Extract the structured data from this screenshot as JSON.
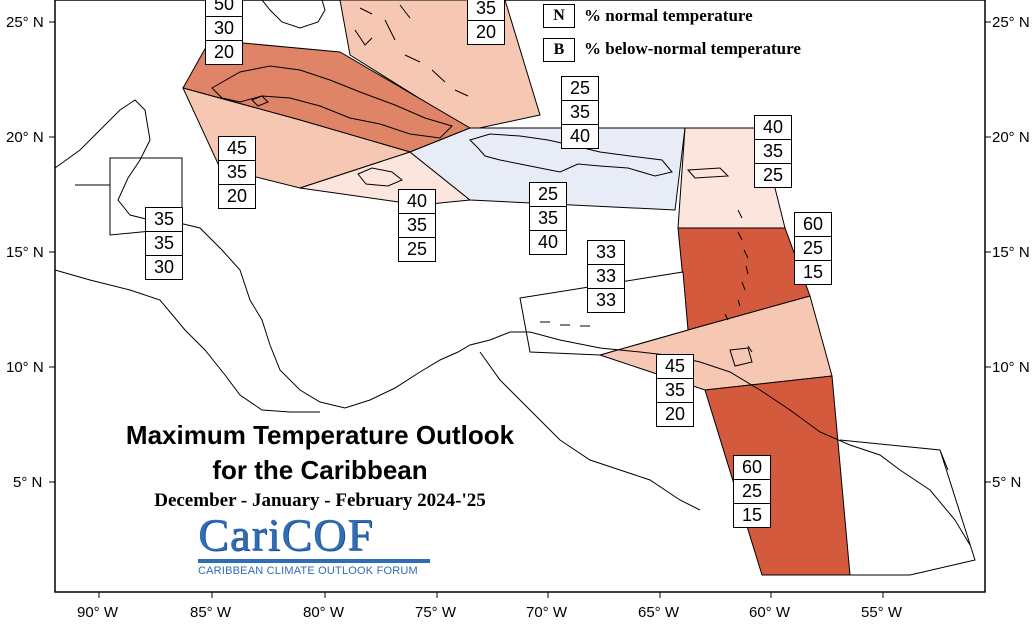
{
  "title_line1": "Maximum Temperature Outlook",
  "title_line2": "for the Caribbean",
  "subtitle": "December - January - February 2024-'25",
  "logo": {
    "wordmark": "CariCOF",
    "tagline": "CARIBBEAN CLIMATE OUTLOOK FORUM",
    "color": "#2f6db5"
  },
  "legend": {
    "items": [
      {
        "key": "N",
        "text": "% normal temperature"
      },
      {
        "key": "B",
        "text": "% below-normal temperature"
      }
    ]
  },
  "latitude_labels": [
    "25° N",
    "20° N",
    "15° N",
    "10° N",
    "5° N"
  ],
  "longitude_labels": [
    "90° W",
    "85° W",
    "80° W",
    "75° W",
    "70° W",
    "65° W",
    "60° W",
    "55° W"
  ],
  "color_scale": {
    "above_60": "#d45a3e",
    "above_50": "#e08468",
    "above_45": "#f2c4b0",
    "above_40": "#fbe5dc",
    "normal_or_below_40": "#e8ecf7",
    "climatology": "#ffffff"
  },
  "forecast_boxes": [
    {
      "values": [
        "50",
        "30",
        "20"
      ]
    },
    {
      "values": [
        "35",
        "20"
      ]
    },
    {
      "values": [
        "25",
        "35",
        "40"
      ]
    },
    {
      "values": [
        "45",
        "35",
        "20"
      ]
    },
    {
      "values": [
        "40",
        "35",
        "25"
      ]
    },
    {
      "values": [
        "35",
        "35",
        "30"
      ]
    },
    {
      "values": [
        "40",
        "35",
        "25"
      ]
    },
    {
      "values": [
        "25",
        "35",
        "40"
      ]
    },
    {
      "values": [
        "60",
        "25",
        "15"
      ]
    },
    {
      "values": [
        "33",
        "33",
        "33"
      ]
    },
    {
      "values": [
        "45",
        "35",
        "20"
      ]
    },
    {
      "values": [
        "60",
        "25",
        "15"
      ]
    }
  ]
}
